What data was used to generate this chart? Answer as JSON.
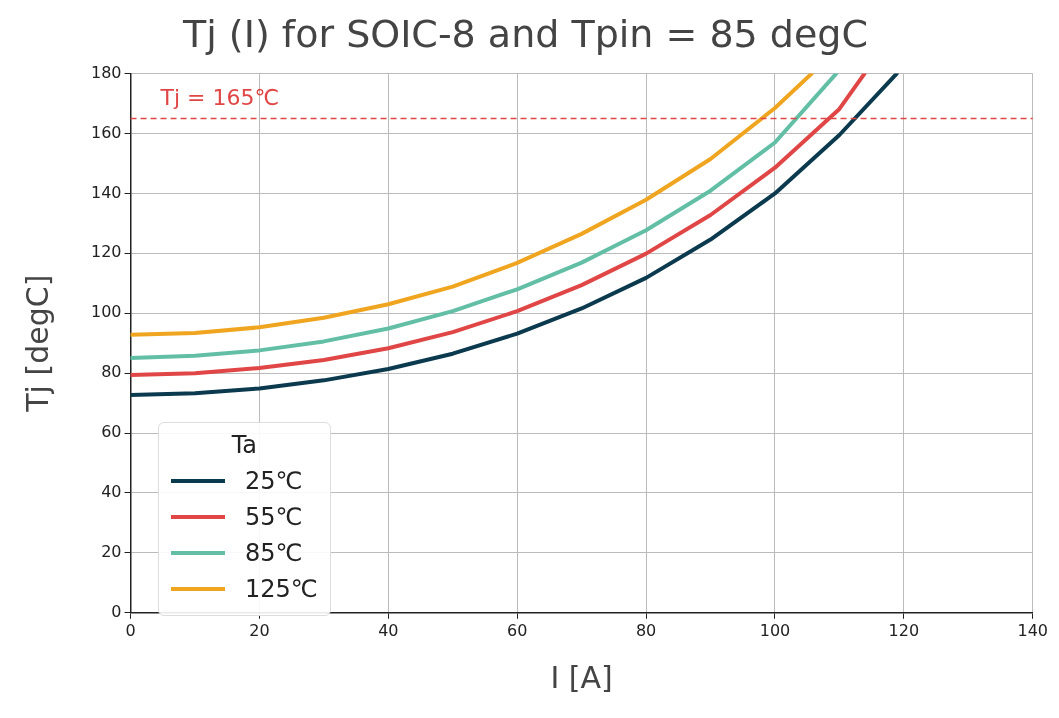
{
  "chart_data": {
    "type": "line",
    "title": "Tj (I) for SOIC-8 and Tpin = 85 degC",
    "xlabel": "I [A]",
    "ylabel": "Tj [degC]",
    "legend_title": "Ta",
    "series": [
      {
        "name": "25℃",
        "color": "#0b3a4f",
        "x": [
          0,
          10,
          20,
          30,
          40,
          50,
          60,
          70,
          80,
          90,
          100,
          110,
          118.9
        ],
        "values": [
          72.7,
          73.3,
          74.9,
          77.6,
          81.4,
          86.5,
          93.2,
          101.6,
          111.8,
          124.6,
          140.0,
          159.5,
          180
        ]
      },
      {
        "name": "55℃",
        "color": "#e04646",
        "x": [
          0,
          10,
          20,
          30,
          40,
          50,
          60,
          70,
          80,
          90,
          100,
          110,
          113.9
        ],
        "values": [
          79.4,
          80.0,
          81.7,
          84.4,
          88.3,
          93.7,
          100.7,
          109.4,
          119.9,
          132.8,
          148.6,
          168.2,
          180
        ]
      },
      {
        "name": "85℃",
        "color": "#62bfa6",
        "x": [
          0,
          10,
          20,
          30,
          40,
          50,
          60,
          70,
          80,
          90,
          100,
          109.5
        ],
        "values": [
          85.1,
          85.8,
          87.6,
          90.6,
          94.9,
          100.7,
          108.0,
          116.9,
          127.7,
          140.9,
          157.0,
          180
        ]
      },
      {
        "name": "125℃",
        "color": "#f0a520",
        "x": [
          0,
          10,
          20,
          30,
          40,
          50,
          60,
          70,
          80,
          90,
          100,
          105.7
        ],
        "values": [
          92.8,
          93.4,
          95.3,
          98.5,
          103.0,
          108.9,
          116.8,
          126.5,
          137.9,
          151.5,
          168.5,
          180
        ]
      }
    ],
    "xlim": [
      0,
      140
    ],
    "xticks": [
      0,
      20,
      40,
      60,
      80,
      100,
      120,
      140
    ],
    "ylim": [
      0,
      180
    ],
    "yticks": [
      0,
      20,
      40,
      60,
      80,
      100,
      120,
      140,
      160,
      180
    ],
    "ref_lines": [
      {
        "axis": "y",
        "value": 165,
        "label": "Tj = 165℃",
        "color": "#e04646",
        "line_style": "dashed"
      }
    ],
    "grid": true,
    "legend": "bottom left",
    "marker": "none",
    "line_style": "solid"
  }
}
